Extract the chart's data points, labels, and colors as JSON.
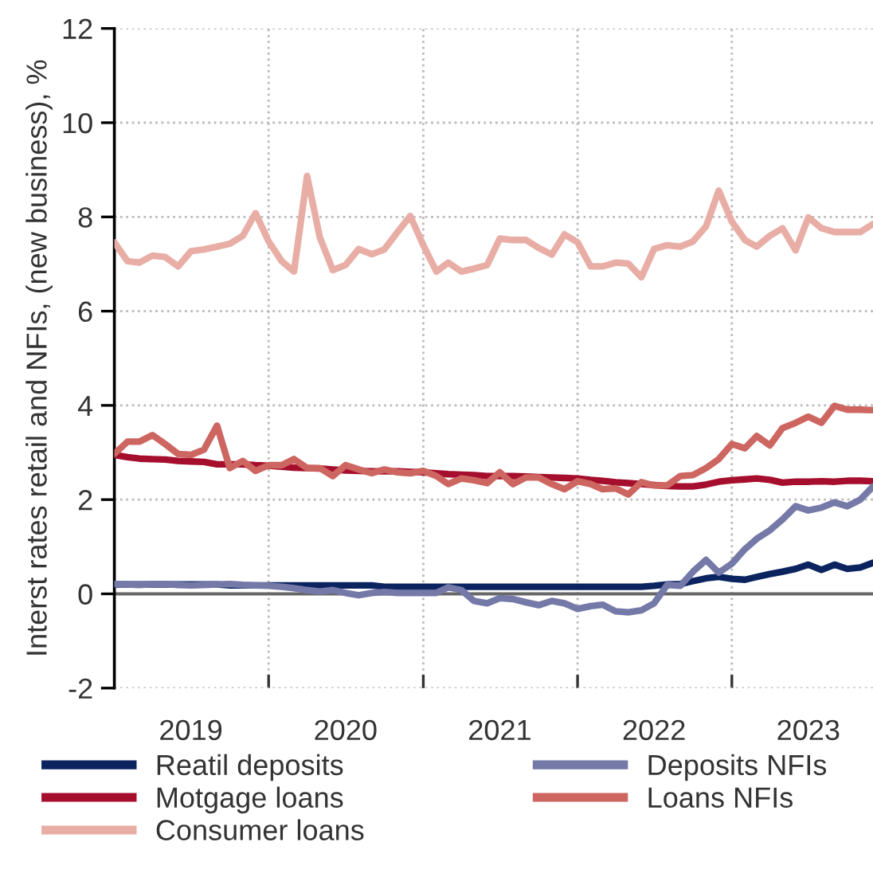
{
  "chart_data": {
    "type": "line",
    "ylabel": "Interst rates retail and NFIs, (new business), %",
    "x": [
      "2019-01",
      "2019-02",
      "2019-03",
      "2019-04",
      "2019-05",
      "2019-06",
      "2019-07",
      "2019-08",
      "2019-09",
      "2019-10",
      "2019-11",
      "2019-12",
      "2020-01",
      "2020-02",
      "2020-03",
      "2020-04",
      "2020-05",
      "2020-06",
      "2020-07",
      "2020-08",
      "2020-09",
      "2020-10",
      "2020-11",
      "2020-12",
      "2021-01",
      "2021-02",
      "2021-03",
      "2021-04",
      "2021-05",
      "2021-06",
      "2021-07",
      "2021-08",
      "2021-09",
      "2021-10",
      "2021-11",
      "2021-12",
      "2022-01",
      "2022-02",
      "2022-03",
      "2022-04",
      "2022-05",
      "2022-06",
      "2022-07",
      "2022-08",
      "2022-09",
      "2022-10",
      "2022-11",
      "2022-12",
      "2023-01",
      "2023-02",
      "2023-03",
      "2023-04",
      "2023-05",
      "2023-06",
      "2023-07",
      "2023-08",
      "2023-09",
      "2023-10",
      "2023-11",
      "2023-12"
    ],
    "series": [
      {
        "name": "Reatil deposits",
        "color": "#0b2460",
        "values": [
          0.2,
          0.2,
          0.2,
          0.2,
          0.2,
          0.2,
          0.2,
          0.2,
          0.2,
          0.18,
          0.18,
          0.18,
          0.18,
          0.18,
          0.18,
          0.18,
          0.18,
          0.18,
          0.18,
          0.18,
          0.18,
          0.15,
          0.15,
          0.15,
          0.15,
          0.15,
          0.15,
          0.15,
          0.15,
          0.15,
          0.15,
          0.15,
          0.15,
          0.15,
          0.15,
          0.15,
          0.15,
          0.15,
          0.15,
          0.15,
          0.15,
          0.15,
          0.17,
          0.2,
          0.21,
          0.27,
          0.33,
          0.36,
          0.32,
          0.3,
          0.36,
          0.42,
          0.47,
          0.53,
          0.62,
          0.51,
          0.62,
          0.53,
          0.56,
          0.66
        ]
      },
      {
        "name": "Motgage loans",
        "color": "#a50f2d",
        "values": [
          2.95,
          2.9,
          2.87,
          2.86,
          2.85,
          2.82,
          2.81,
          2.8,
          2.75,
          2.75,
          2.75,
          2.73,
          2.72,
          2.7,
          2.68,
          2.67,
          2.66,
          2.64,
          2.62,
          2.61,
          2.6,
          2.6,
          2.6,
          2.59,
          2.58,
          2.56,
          2.54,
          2.53,
          2.52,
          2.5,
          2.5,
          2.5,
          2.49,
          2.48,
          2.47,
          2.46,
          2.45,
          2.42,
          2.4,
          2.37,
          2.35,
          2.33,
          2.31,
          2.29,
          2.28,
          2.28,
          2.32,
          2.38,
          2.41,
          2.43,
          2.45,
          2.42,
          2.36,
          2.38,
          2.38,
          2.39,
          2.38,
          2.4,
          2.4,
          2.39
        ]
      },
      {
        "name": "Consumer loans",
        "color": "#e8aea6",
        "values": [
          7.46,
          7.06,
          7.03,
          7.18,
          7.15,
          6.95,
          7.27,
          7.31,
          7.37,
          7.43,
          7.6,
          8.08,
          7.48,
          7.06,
          6.84,
          8.87,
          7.57,
          6.87,
          6.98,
          7.32,
          7.21,
          7.31,
          7.68,
          8.02,
          7.4,
          6.84,
          7.03,
          6.84,
          6.9,
          6.98,
          7.54,
          7.51,
          7.51,
          7.34,
          7.2,
          7.63,
          7.46,
          6.95,
          6.95,
          7.03,
          7.01,
          6.72,
          7.32,
          7.4,
          7.37,
          7.48,
          7.8,
          8.56,
          7.9,
          7.51,
          7.37,
          7.6,
          7.76,
          7.29,
          7.99,
          7.76,
          7.68,
          7.68,
          7.68,
          7.85
        ]
      },
      {
        "name": "Deposits NFIs",
        "color": "#7479a8",
        "values": [
          0.21,
          0.2,
          0.19,
          0.21,
          0.21,
          0.19,
          0.18,
          0.19,
          0.2,
          0.21,
          0.19,
          0.18,
          0.17,
          0.15,
          0.12,
          0.08,
          0.05,
          0.08,
          0.02,
          -0.03,
          0.02,
          0.04,
          0.02,
          0.02,
          0.02,
          0.02,
          0.14,
          0.08,
          -0.15,
          -0.2,
          -0.09,
          -0.11,
          -0.18,
          -0.24,
          -0.15,
          -0.2,
          -0.32,
          -0.26,
          -0.23,
          -0.37,
          -0.39,
          -0.35,
          -0.2,
          0.19,
          0.17,
          0.47,
          0.72,
          0.45,
          0.64,
          0.95,
          1.17,
          1.35,
          1.58,
          1.86,
          1.77,
          1.83,
          1.94,
          1.86,
          2.0,
          2.28
        ]
      },
      {
        "name": "Loans NFIs",
        "color": "#cd6560",
        "values": [
          2.97,
          3.23,
          3.23,
          3.37,
          3.18,
          2.97,
          2.95,
          3.06,
          3.57,
          2.67,
          2.82,
          2.61,
          2.73,
          2.73,
          2.86,
          2.67,
          2.67,
          2.5,
          2.73,
          2.64,
          2.56,
          2.64,
          2.58,
          2.56,
          2.61,
          2.5,
          2.33,
          2.45,
          2.41,
          2.35,
          2.58,
          2.33,
          2.47,
          2.47,
          2.33,
          2.22,
          2.39,
          2.33,
          2.22,
          2.24,
          2.11,
          2.37,
          2.3,
          2.3,
          2.5,
          2.52,
          2.67,
          2.86,
          3.18,
          3.09,
          3.35,
          3.15,
          3.52,
          3.63,
          3.76,
          3.63,
          3.99,
          3.91,
          3.91,
          3.9
        ]
      }
    ],
    "xlim": [
      "2019-01",
      "2023-12"
    ],
    "xticks": [
      {
        "value": "2019-07",
        "label": "2019"
      },
      {
        "value": "2020-01",
        "label": null
      },
      {
        "value": "2020-07",
        "label": "2020"
      },
      {
        "value": "2021-01",
        "label": null
      },
      {
        "value": "2021-07",
        "label": "2021"
      },
      {
        "value": "2022-01",
        "label": null
      },
      {
        "value": "2022-07",
        "label": "2022"
      },
      {
        "value": "2023-01",
        "label": null
      },
      {
        "value": "2023-07",
        "label": "2023"
      }
    ],
    "ylim": [
      -2,
      12
    ],
    "yticks": [
      -2,
      0,
      2,
      4,
      6,
      8,
      10,
      12
    ],
    "ref_lines": [
      {
        "axis": "y",
        "value": 0,
        "label": null,
        "color": "#666666",
        "line_style": "solid"
      }
    ],
    "grid": true,
    "legend": "bottom",
    "marker": "none",
    "line_style": "solid"
  }
}
